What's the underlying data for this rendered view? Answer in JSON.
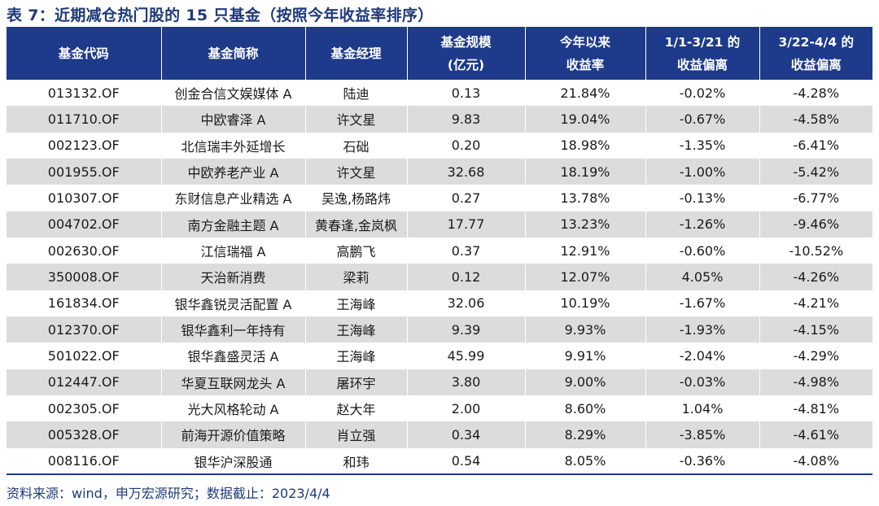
{
  "title": "表 7：近期减仓热门股的 15 只基金（按照今年收益率排序）",
  "columns": [
    {
      "line1": "基金代码",
      "line2": ""
    },
    {
      "line1": "基金简称",
      "line2": ""
    },
    {
      "line1": "基金经理",
      "line2": ""
    },
    {
      "line1": "基金规模",
      "line2": "(亿元)"
    },
    {
      "line1": "今年以来",
      "line2": "收益率"
    },
    {
      "line1": "1/1-3/21 的",
      "line2": "收益偏离"
    },
    {
      "line1": "3/22-4/4 的",
      "line2": "收益偏离"
    }
  ],
  "rows": [
    [
      "013132.OF",
      "创金合信文娱媒体 A",
      "陆迪",
      "0.13",
      "21.84%",
      "-0.02%",
      "-4.28%"
    ],
    [
      "011710.OF",
      "中欧睿泽 A",
      "许文星",
      "9.83",
      "19.04%",
      "-0.67%",
      "-4.58%"
    ],
    [
      "002123.OF",
      "北信瑞丰外延增长",
      "石础",
      "0.20",
      "18.98%",
      "-1.35%",
      "-6.41%"
    ],
    [
      "001955.OF",
      "中欧养老产业 A",
      "许文星",
      "32.68",
      "18.19%",
      "-1.00%",
      "-5.42%"
    ],
    [
      "010307.OF",
      "东财信息产业精选 A",
      "吴逸,杨路炜",
      "0.27",
      "13.78%",
      "-0.13%",
      "-6.77%"
    ],
    [
      "004702.OF",
      "南方金融主题 A",
      "黄春逢,金岚枫",
      "17.77",
      "13.23%",
      "-1.26%",
      "-9.46%"
    ],
    [
      "002630.OF",
      "江信瑞福 A",
      "高鹏飞",
      "0.37",
      "12.91%",
      "-0.60%",
      "-10.52%"
    ],
    [
      "350008.OF",
      "天治新消费",
      "梁莉",
      "0.12",
      "12.07%",
      "4.05%",
      "-4.26%"
    ],
    [
      "161834.OF",
      "银华鑫锐灵活配置 A",
      "王海峰",
      "32.06",
      "10.19%",
      "-1.67%",
      "-4.21%"
    ],
    [
      "012370.OF",
      "银华鑫利一年持有",
      "王海峰",
      "9.39",
      "9.93%",
      "-1.93%",
      "-4.15%"
    ],
    [
      "501022.OF",
      "银华鑫盛灵活 A",
      "王海峰",
      "45.99",
      "9.91%",
      "-2.04%",
      "-4.29%"
    ],
    [
      "012447.OF",
      "华夏互联网龙头 A",
      "屠环宇",
      "3.80",
      "9.00%",
      "-0.03%",
      "-4.98%"
    ],
    [
      "002305.OF",
      "光大风格轮动 A",
      "赵大年",
      "2.00",
      "8.60%",
      "1.04%",
      "-4.81%"
    ],
    [
      "005328.OF",
      "前海开源价值策略",
      "肖立强",
      "0.34",
      "8.29%",
      "-3.85%",
      "-4.61%"
    ],
    [
      "008116.OF",
      "银华沪深股通",
      "和玮",
      "0.54",
      "8.05%",
      "-0.36%",
      "-4.08%"
    ]
  ],
  "source": "资料来源：wind，申万宏源研究；数据截止：2023/4/4",
  "colors": {
    "header_bg": "#1e3a8a",
    "stripe": "#dcdcdc",
    "title": "#1f3a7a"
  }
}
